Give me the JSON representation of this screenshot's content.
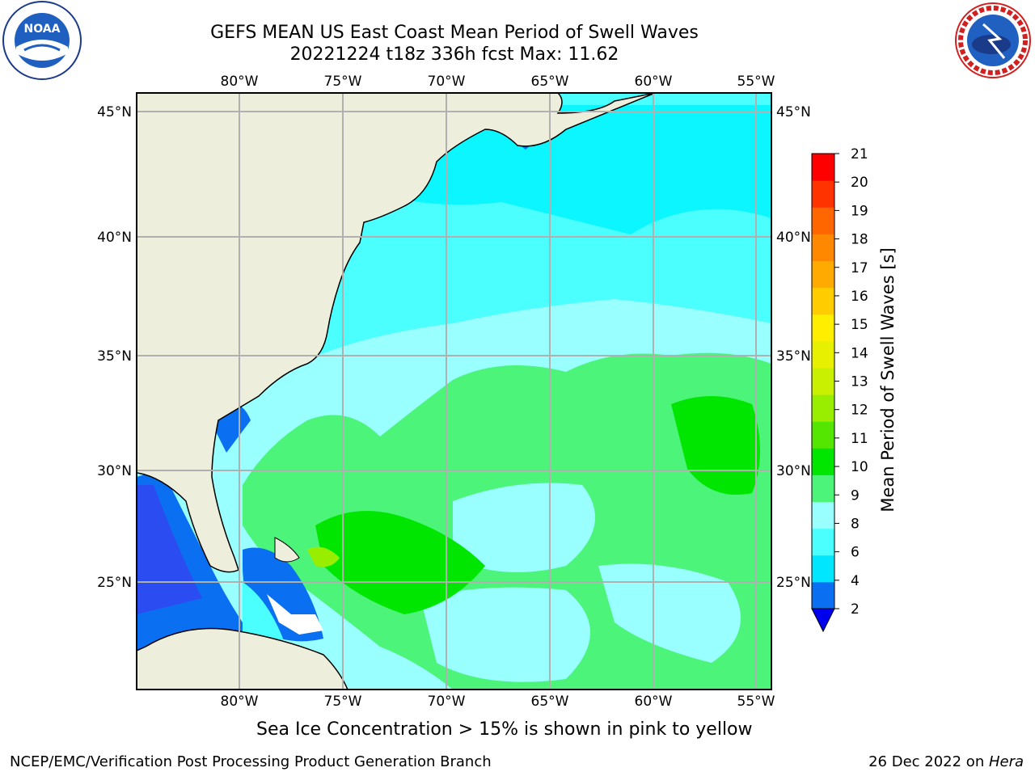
{
  "title": {
    "line1": "GEFS MEAN US East Coast Mean Period of Swell Waves",
    "line2": "20221224 t18z 336h fcst   Max: 11.62"
  },
  "map": {
    "lon_labels": [
      "80°W",
      "75°W",
      "70°W",
      "65°W",
      "60°W",
      "55°W"
    ],
    "lat_labels": [
      "45°N",
      "40°N",
      "35°N",
      "30°N",
      "25°N"
    ],
    "ocean_field_color": "#4cff4c"
  },
  "colorbar": {
    "label": "Mean Period of Swell Waves [s]",
    "ticks": [
      "2",
      "4",
      "6",
      "8",
      "9",
      "10",
      "11",
      "12",
      "13",
      "14",
      "15",
      "16",
      "17",
      "18",
      "19",
      "20",
      "21"
    ],
    "colors": [
      "#0a6ff0",
      "#00e6ff",
      "#4cffff",
      "#99ffff",
      "#4cf57a",
      "#00e600",
      "#55e600",
      "#99ee00",
      "#c8f000",
      "#e6f000",
      "#ffee00",
      "#ffcc00",
      "#ffaa00",
      "#ff8800",
      "#ff6600",
      "#ff3300",
      "#ff0000"
    ],
    "extend_color": "#0000ee"
  },
  "footer": {
    "ice_note": "Sea Ice Concentration > 15% is shown in pink to yellow",
    "branch": "NCEP/EMC/Verification Post Processing Product Generation Branch",
    "date_prefix": "26 Dec 2022 on ",
    "date_machine": "Hera"
  },
  "logos": {
    "noaa_text": "NOAA",
    "nws_text": "NATIONAL WEATHER SERVICE"
  }
}
